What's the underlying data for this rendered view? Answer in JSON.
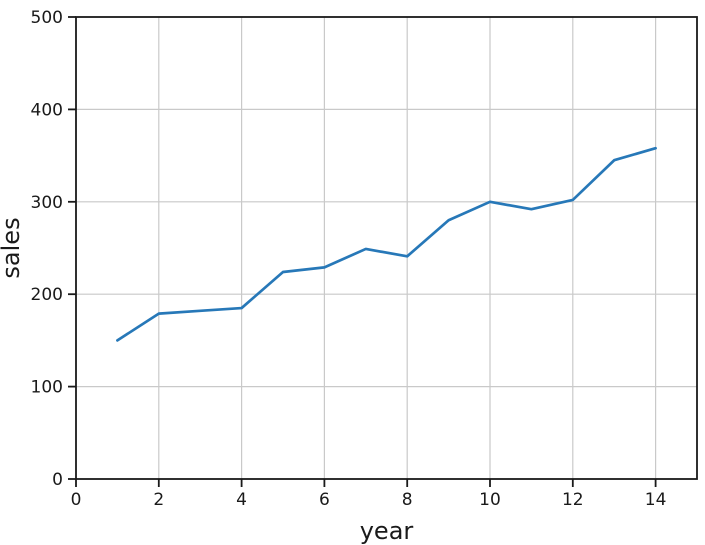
{
  "chart_data": {
    "type": "line",
    "title": "",
    "xlabel": "year",
    "ylabel": "sales",
    "x": [
      1,
      2,
      3,
      4,
      5,
      6,
      7,
      8,
      9,
      10,
      11,
      12,
      13,
      14
    ],
    "y": [
      150,
      179,
      182,
      185,
      224,
      229,
      249,
      241,
      280,
      300,
      292,
      302,
      345,
      358
    ],
    "xlim": [
      0,
      15
    ],
    "ylim": [
      0,
      500
    ],
    "xticks": [
      0,
      2,
      4,
      6,
      8,
      10,
      12,
      14
    ],
    "yticks": [
      0,
      100,
      200,
      300,
      400,
      500
    ],
    "grid": true,
    "legend": false,
    "colors": {
      "line": "#2778b8",
      "grid": "#c9c9c9",
      "spine": "#1a1a1a",
      "text": "#1a1a1a",
      "background": "#ffffff"
    }
  }
}
